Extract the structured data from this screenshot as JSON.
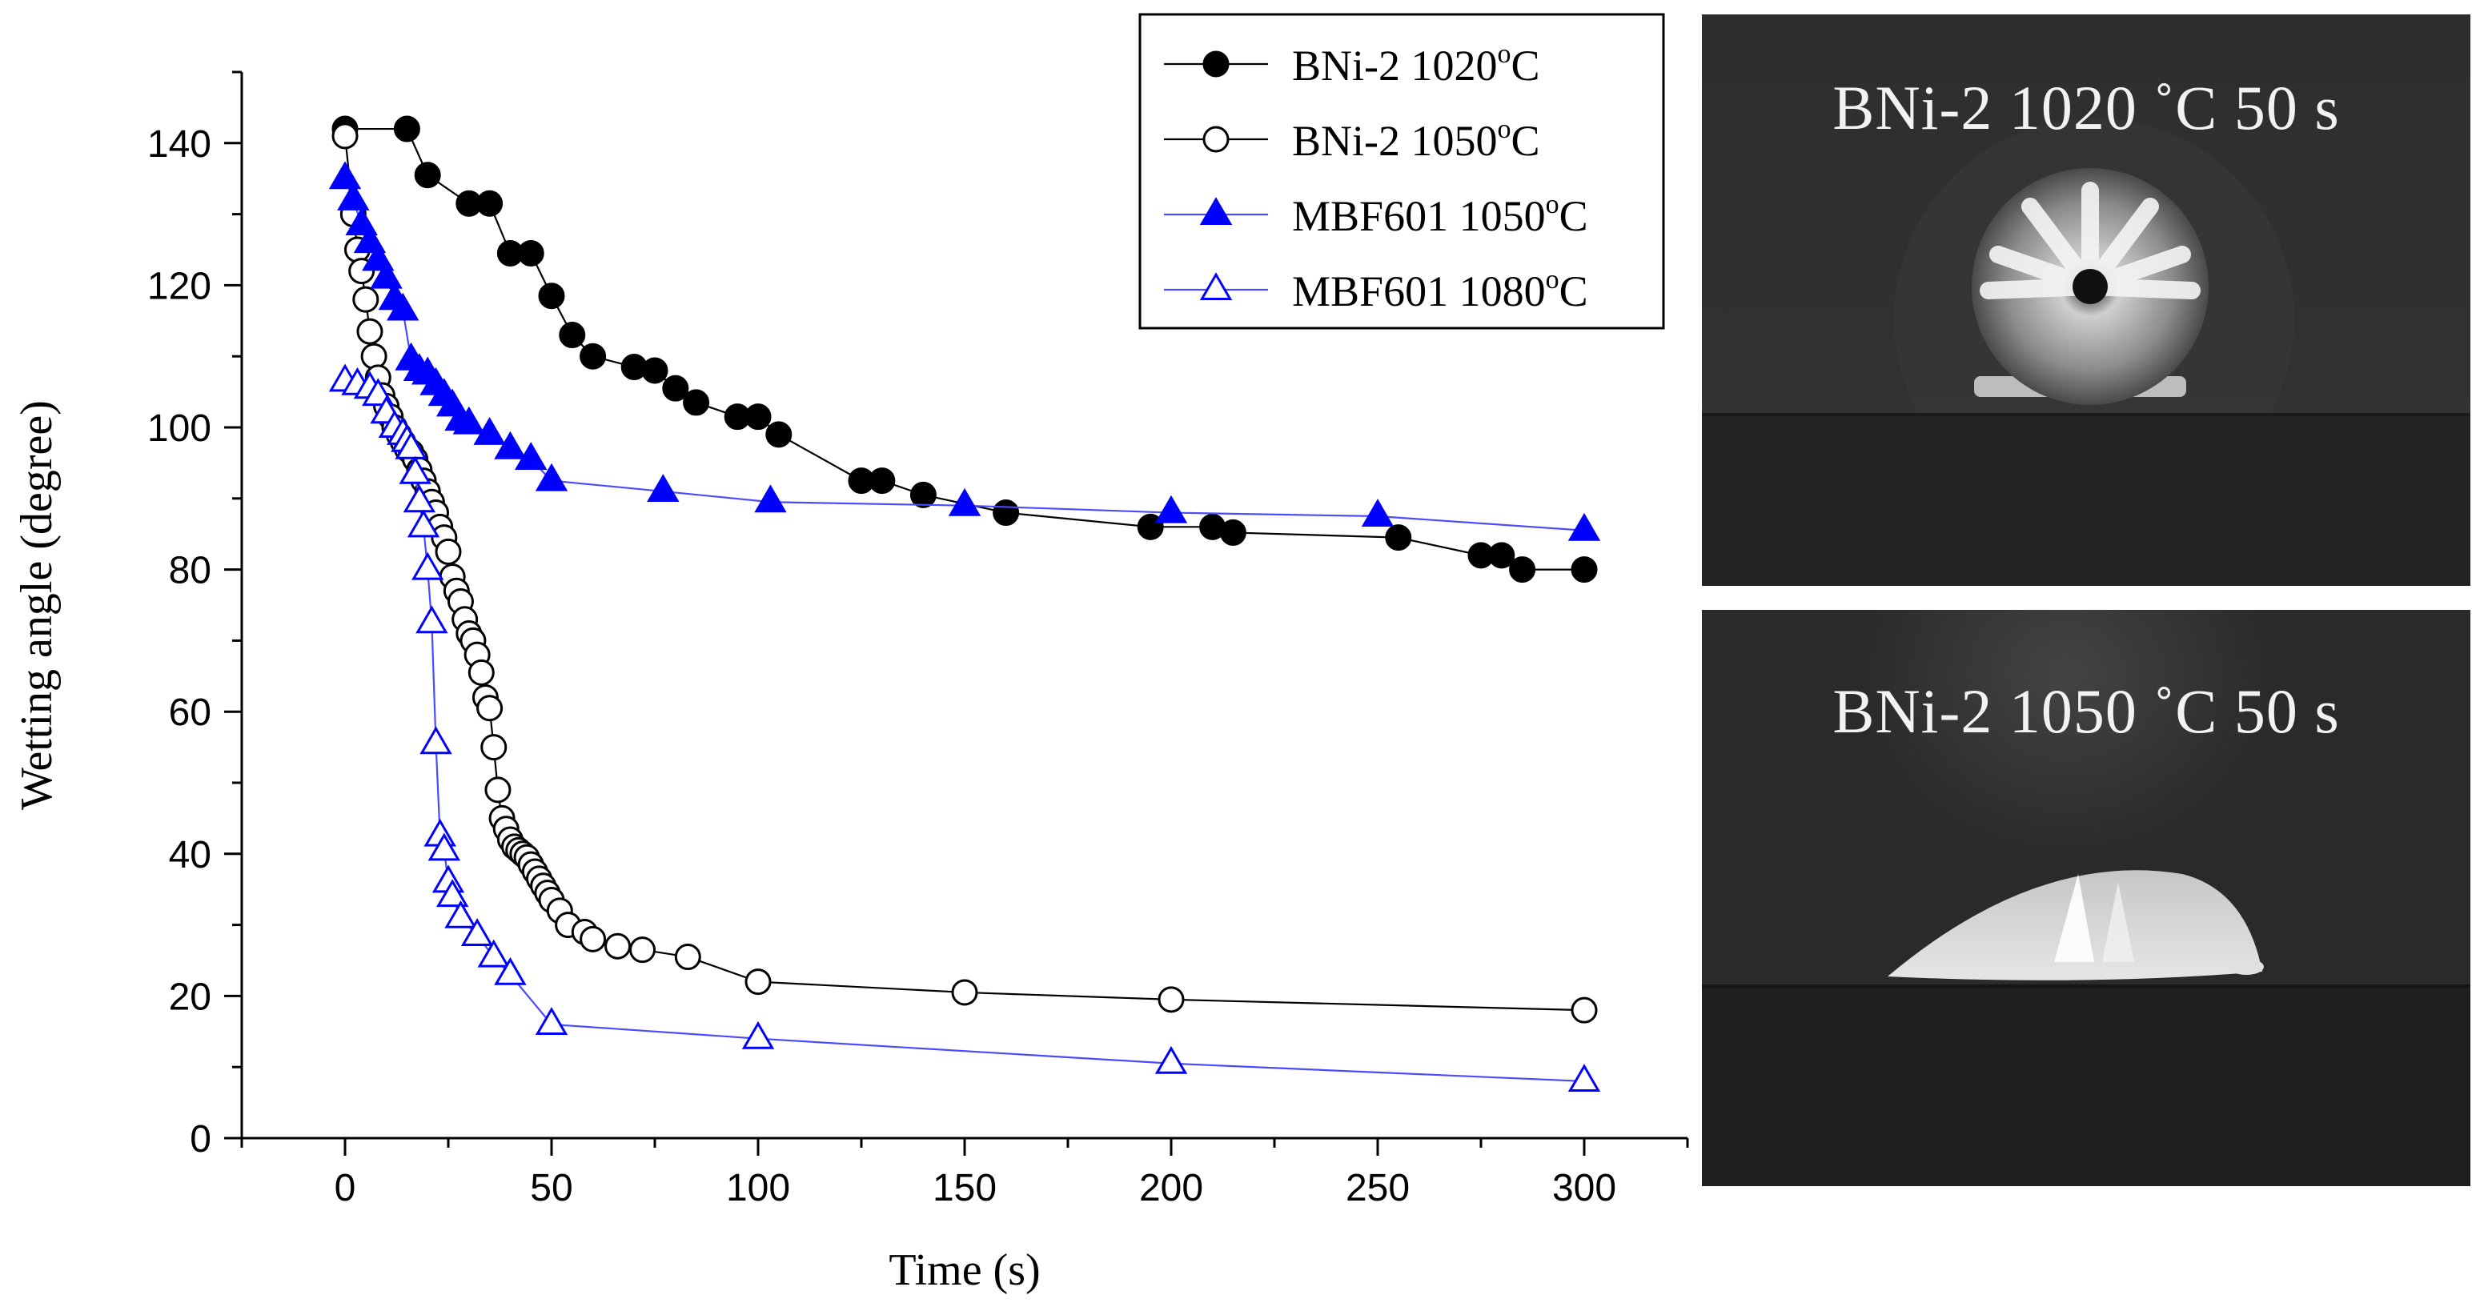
{
  "chart_data": {
    "type": "line",
    "xlabel": "Time (s)",
    "ylabel": "Wetting angle (degree)",
    "xlim": [
      -25,
      325
    ],
    "ylim": [
      0,
      150
    ],
    "xticks": [
      0,
      50,
      100,
      150,
      200,
      250,
      300
    ],
    "yticks": [
      0,
      20,
      40,
      60,
      80,
      100,
      120,
      140
    ],
    "legend_position": "top-right",
    "series": [
      {
        "name": "BNi-2 1020°C",
        "label_base": "BNi-2 1020",
        "label_sup": "o",
        "label_unit": "C",
        "marker": "circle",
        "filled": true,
        "color": "#000000",
        "line_color": "#000000",
        "x": [
          0,
          15,
          20,
          30,
          35,
          40,
          45,
          50,
          55,
          60,
          70,
          75,
          80,
          85,
          95,
          100,
          105,
          125,
          130,
          140,
          160,
          195,
          210,
          215,
          255,
          275,
          280,
          285,
          300
        ],
        "y": [
          142,
          142,
          135.5,
          131.5,
          131.5,
          124.5,
          124.5,
          118.5,
          113,
          110,
          108.5,
          108,
          105.5,
          103.5,
          101.5,
          101.5,
          99,
          92.5,
          92.5,
          90.5,
          88,
          86,
          86,
          85.2,
          84.5,
          82,
          82,
          80,
          80
        ]
      },
      {
        "name": "BNi-2 1050°C",
        "label_base": "BNi-2 1050",
        "label_sup": "o",
        "label_unit": "C",
        "marker": "circle",
        "filled": false,
        "color": "#000000",
        "line_color": "#000000",
        "x": [
          0,
          2,
          3,
          4,
          5,
          6,
          7,
          8,
          9,
          10,
          11,
          12,
          13,
          14,
          15,
          16,
          17,
          18,
          19,
          20,
          21,
          22,
          23,
          24,
          25,
          26,
          27,
          28,
          29,
          30,
          31,
          32,
          33,
          34,
          35,
          36,
          37,
          38,
          39,
          40,
          41,
          42,
          43,
          44,
          45,
          46,
          47,
          48,
          49,
          50,
          52,
          54,
          58,
          60,
          66,
          72,
          83,
          100,
          150,
          200,
          300
        ],
        "y": [
          141,
          130,
          125,
          122,
          118,
          113.5,
          110,
          107,
          104.5,
          103,
          101.5,
          100,
          99,
          98,
          97,
          96.5,
          95.5,
          94,
          92.5,
          91,
          89.5,
          88,
          86,
          84.5,
          82.5,
          79,
          77,
          75.5,
          73,
          71,
          70,
          68,
          65.5,
          62,
          60.5,
          55,
          49,
          45,
          43.5,
          42,
          41,
          40.5,
          40,
          39.5,
          38.5,
          37.5,
          36.5,
          35.5,
          34.5,
          33.5,
          32,
          30,
          29,
          28,
          27,
          26.5,
          25.5,
          22,
          20.5,
          19.5,
          18
        ]
      },
      {
        "name": "MBF601 1050°C",
        "label_base": "MBF601 1050",
        "label_sup": "o",
        "label_unit": "C",
        "marker": "triangle",
        "filled": true,
        "color": "#0000ff",
        "line_color": "#4a4aff",
        "x": [
          0,
          2,
          4,
          6,
          8,
          10,
          12,
          14,
          16,
          18,
          20,
          22,
          24,
          26,
          28,
          30,
          35,
          40,
          45,
          50,
          77,
          103,
          150,
          200,
          250,
          300
        ],
        "y": [
          135,
          132,
          128.5,
          126,
          123.5,
          121,
          118,
          116.5,
          109.5,
          108,
          107.5,
          106,
          104.5,
          103,
          101,
          100.5,
          99,
          97,
          95.5,
          92.5,
          91,
          89.5,
          89,
          88,
          87.5,
          85.5
        ]
      },
      {
        "name": "MBF601 1080°C",
        "label_base": "MBF601 1080",
        "label_sup": "o",
        "label_unit": "C",
        "marker": "triangle",
        "filled": false,
        "color": "#0000ff",
        "line_color": "#4a4aff",
        "x": [
          0,
          3,
          6,
          8,
          10,
          12,
          14,
          15,
          16,
          17,
          18,
          19,
          20,
          21,
          22,
          23,
          24,
          25,
          26,
          28,
          32,
          36,
          40,
          50,
          100,
          200,
          300
        ],
        "y": [
          106.5,
          106,
          105.5,
          104.5,
          102,
          100,
          99,
          98,
          97,
          93.5,
          89.5,
          86,
          80,
          72.5,
          55.5,
          42.5,
          40.5,
          36,
          34,
          31,
          28.5,
          25.5,
          23,
          16,
          14,
          10.5,
          8
        ]
      }
    ]
  },
  "photos": [
    {
      "label": "BNi-2 1020 ˚C 50 s"
    },
    {
      "label": "BNi-2 1050 ˚C 50 s"
    }
  ]
}
